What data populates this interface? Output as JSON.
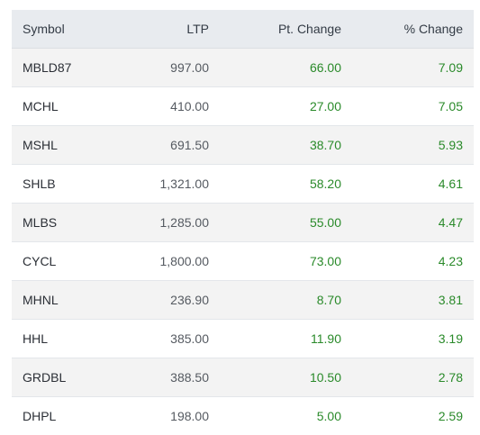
{
  "table": {
    "headers": {
      "symbol": "Symbol",
      "ltp": "LTP",
      "pt_change": "Pt. Change",
      "pct_change": "% Change"
    },
    "rows": [
      {
        "symbol": "MBLD87",
        "ltp": "997.00",
        "pt_change": "66.00",
        "pct_change": "7.09"
      },
      {
        "symbol": "MCHL",
        "ltp": "410.00",
        "pt_change": "27.00",
        "pct_change": "7.05"
      },
      {
        "symbol": "MSHL",
        "ltp": "691.50",
        "pt_change": "38.70",
        "pct_change": "5.93"
      },
      {
        "symbol": "SHLB",
        "ltp": "1,321.00",
        "pt_change": "58.20",
        "pct_change": "4.61"
      },
      {
        "symbol": "MLBS",
        "ltp": "1,285.00",
        "pt_change": "55.00",
        "pct_change": "4.47"
      },
      {
        "symbol": "CYCL",
        "ltp": "1,800.00",
        "pt_change": "73.00",
        "pct_change": "4.23"
      },
      {
        "symbol": "MHNL",
        "ltp": "236.90",
        "pt_change": "8.70",
        "pct_change": "3.81"
      },
      {
        "symbol": "HHL",
        "ltp": "385.00",
        "pt_change": "11.90",
        "pct_change": "3.19"
      },
      {
        "symbol": "GRDBL",
        "ltp": "388.50",
        "pt_change": "10.50",
        "pct_change": "2.78"
      },
      {
        "symbol": "DHPL",
        "ltp": "198.00",
        "pt_change": "5.00",
        "pct_change": "2.59"
      }
    ]
  },
  "colors": {
    "header_bg": "#e8ebef",
    "row_alt_bg": "#f3f3f3",
    "positive": "#2a8a2a",
    "text": "#2b2f36"
  }
}
